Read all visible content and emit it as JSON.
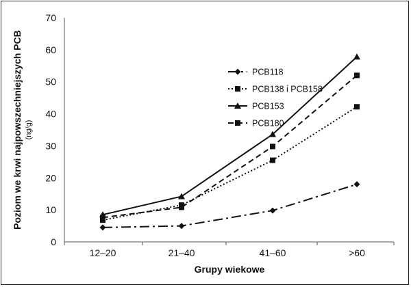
{
  "chart_data": {
    "type": "line",
    "xlabel": "Grupy wiekowe",
    "ylabel": "Poziom we krwi najpowszechniejszych PCB",
    "ylabel_unit": "(ng/g)",
    "ylim": [
      0,
      70
    ],
    "yticks": [
      "0",
      "10",
      "20",
      "30",
      "40",
      "50",
      "60",
      "70"
    ],
    "ytick_values": [
      0,
      10,
      20,
      30,
      40,
      50,
      60,
      70
    ],
    "categories": [
      "12–20",
      "21–40",
      "41–60",
      ">60"
    ],
    "grid": false,
    "legend_position": "center",
    "series": [
      {
        "name": "PCB118",
        "values": [
          4.5,
          5,
          9.8,
          18
        ],
        "marker": "diamond",
        "dash": "14,5,3,5"
      },
      {
        "name": "PCB138 i PCB158",
        "values": [
          6.8,
          11.5,
          25.5,
          42.2
        ],
        "marker": "square",
        "dash": "2,3"
      },
      {
        "name": "PCB153",
        "values": [
          8.5,
          14.2,
          33.6,
          57.8
        ],
        "marker": "triangle",
        "dash": ""
      },
      {
        "name": "PCB180",
        "values": [
          7.6,
          10.8,
          29.8,
          52
        ],
        "marker": "square",
        "dash": "8,5"
      }
    ]
  }
}
